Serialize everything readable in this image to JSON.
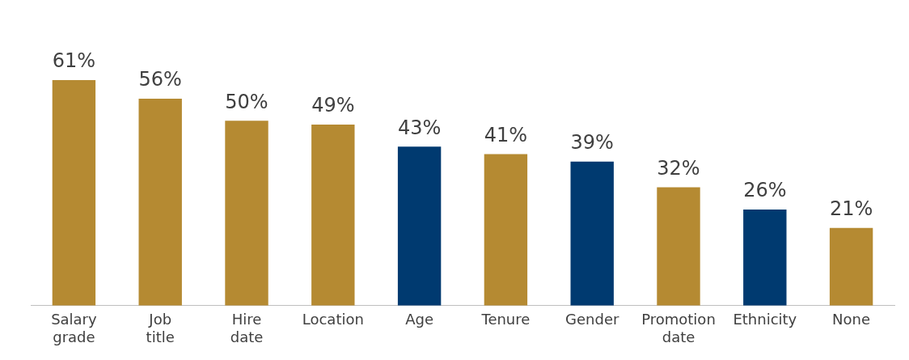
{
  "chart_data": {
    "type": "bar",
    "categories": [
      "Salary grade",
      "Job title",
      "Hire date",
      "Location",
      "Age",
      "Tenure",
      "Gender",
      "Promotion date",
      "Ethnicity",
      "None"
    ],
    "values": [
      61,
      56,
      50,
      49,
      43,
      41,
      39,
      32,
      26,
      21
    ],
    "colors": [
      "#b58a32",
      "#b58a32",
      "#b58a32",
      "#b58a32",
      "#003a70",
      "#b58a32",
      "#003a70",
      "#b58a32",
      "#003a70",
      "#b58a32"
    ],
    "value_labels": [
      "61%",
      "56%",
      "50%",
      "49%",
      "43%",
      "41%",
      "39%",
      "32%",
      "26%",
      "21%"
    ],
    "grid": false,
    "legend": false
  }
}
